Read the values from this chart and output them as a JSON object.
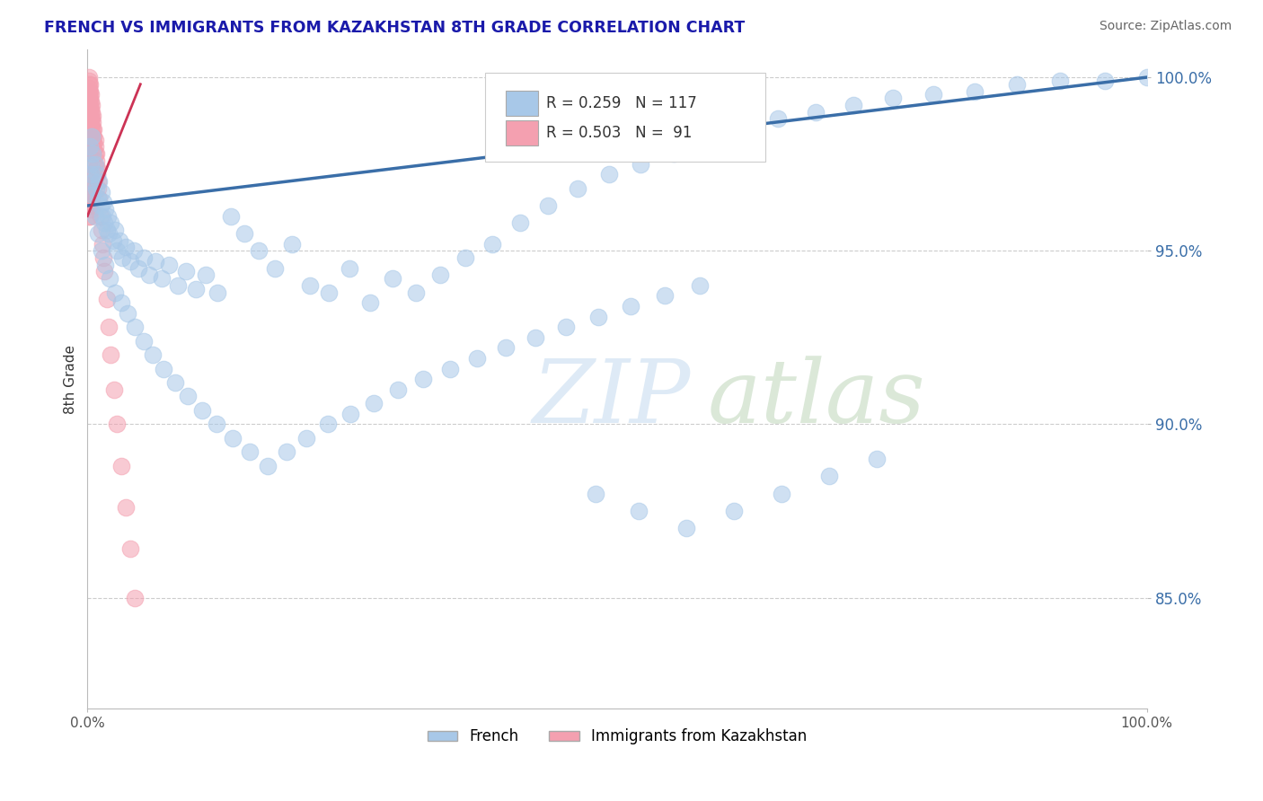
{
  "title": "FRENCH VS IMMIGRANTS FROM KAZAKHSTAN 8TH GRADE CORRELATION CHART",
  "source_text": "Source: ZipAtlas.com",
  "ylabel": "8th Grade",
  "watermark": "ZIPatlas",
  "xlim": [
    0.0,
    1.0
  ],
  "ylim": [
    0.818,
    1.008
  ],
  "yticks": [
    0.85,
    0.9,
    0.95,
    1.0
  ],
  "ytick_labels": [
    "85.0%",
    "90.0%",
    "95.0%",
    "100.0%"
  ],
  "xticks": [
    0.0,
    1.0
  ],
  "xtick_labels": [
    "0.0%",
    "100.0%"
  ],
  "legend_blue_label": "French",
  "legend_pink_label": "Immigrants from Kazakhstan",
  "R_blue": 0.259,
  "N_blue": 117,
  "R_pink": 0.503,
  "N_pink": 91,
  "blue_color": "#a8c8e8",
  "pink_color": "#f4a0b0",
  "blue_line_color": "#3a6ea8",
  "title_color": "#1a1aaa",
  "source_color": "#666666",
  "grid_color": "#cccccc",
  "background_color": "#ffffff",
  "blue_points_x": [
    0.002,
    0.003,
    0.004,
    0.005,
    0.006,
    0.007,
    0.008,
    0.009,
    0.01,
    0.011,
    0.012,
    0.013,
    0.014,
    0.015,
    0.016,
    0.017,
    0.018,
    0.019,
    0.02,
    0.022,
    0.024,
    0.026,
    0.028,
    0.03,
    0.033,
    0.036,
    0.04,
    0.044,
    0.048,
    0.053,
    0.058,
    0.064,
    0.07,
    0.077,
    0.085,
    0.093,
    0.102,
    0.112,
    0.123,
    0.135,
    0.148,
    0.162,
    0.177,
    0.193,
    0.21,
    0.228,
    0.247,
    0.267,
    0.288,
    0.31,
    0.333,
    0.357,
    0.382,
    0.408,
    0.435,
    0.463,
    0.492,
    0.522,
    0.553,
    0.585,
    0.618,
    0.652,
    0.687,
    0.723,
    0.76,
    0.798,
    0.837,
    0.877,
    0.918,
    0.96,
    1.0,
    0.003,
    0.005,
    0.007,
    0.01,
    0.013,
    0.017,
    0.021,
    0.026,
    0.032,
    0.038,
    0.045,
    0.053,
    0.062,
    0.072,
    0.083,
    0.095,
    0.108,
    0.122,
    0.137,
    0.153,
    0.17,
    0.188,
    0.207,
    0.227,
    0.248,
    0.27,
    0.293,
    0.317,
    0.342,
    0.368,
    0.395,
    0.423,
    0.452,
    0.482,
    0.513,
    0.545,
    0.578,
    0.48,
    0.52,
    0.565,
    0.61,
    0.655,
    0.7,
    0.745
  ],
  "blue_points_y": [
    0.98,
    0.975,
    0.983,
    0.978,
    0.97,
    0.975,
    0.968,
    0.972,
    0.965,
    0.97,
    0.963,
    0.967,
    0.96,
    0.964,
    0.958,
    0.962,
    0.956,
    0.96,
    0.955,
    0.958,
    0.953,
    0.956,
    0.95,
    0.953,
    0.948,
    0.951,
    0.947,
    0.95,
    0.945,
    0.948,
    0.943,
    0.947,
    0.942,
    0.946,
    0.94,
    0.944,
    0.939,
    0.943,
    0.938,
    0.96,
    0.955,
    0.95,
    0.945,
    0.952,
    0.94,
    0.938,
    0.945,
    0.935,
    0.942,
    0.938,
    0.943,
    0.948,
    0.952,
    0.958,
    0.963,
    0.968,
    0.972,
    0.975,
    0.978,
    0.982,
    0.985,
    0.988,
    0.99,
    0.992,
    0.994,
    0.995,
    0.996,
    0.998,
    0.999,
    0.999,
    1.0,
    0.972,
    0.966,
    0.96,
    0.955,
    0.95,
    0.946,
    0.942,
    0.938,
    0.935,
    0.932,
    0.928,
    0.924,
    0.92,
    0.916,
    0.912,
    0.908,
    0.904,
    0.9,
    0.896,
    0.892,
    0.888,
    0.892,
    0.896,
    0.9,
    0.903,
    0.906,
    0.91,
    0.913,
    0.916,
    0.919,
    0.922,
    0.925,
    0.928,
    0.931,
    0.934,
    0.937,
    0.94,
    0.88,
    0.875,
    0.87,
    0.875,
    0.88,
    0.885,
    0.89
  ],
  "pink_points_x": [
    0.001,
    0.001,
    0.001,
    0.001,
    0.001,
    0.001,
    0.001,
    0.001,
    0.001,
    0.001,
    0.001,
    0.001,
    0.001,
    0.001,
    0.001,
    0.001,
    0.001,
    0.001,
    0.001,
    0.001,
    0.002,
    0.002,
    0.002,
    0.002,
    0.002,
    0.002,
    0.002,
    0.002,
    0.002,
    0.002,
    0.003,
    0.003,
    0.003,
    0.003,
    0.003,
    0.003,
    0.003,
    0.003,
    0.004,
    0.004,
    0.004,
    0.004,
    0.004,
    0.004,
    0.005,
    0.005,
    0.005,
    0.005,
    0.005,
    0.006,
    0.006,
    0.006,
    0.006,
    0.007,
    0.007,
    0.007,
    0.008,
    0.008,
    0.008,
    0.009,
    0.009,
    0.01,
    0.01,
    0.011,
    0.012,
    0.013,
    0.014,
    0.015,
    0.016,
    0.018,
    0.02,
    0.022,
    0.025,
    0.028,
    0.032,
    0.036,
    0.04,
    0.045,
    0.001,
    0.001,
    0.001,
    0.001,
    0.001,
    0.001,
    0.002,
    0.002,
    0.002,
    0.002,
    0.002,
    0.003,
    0.003,
    0.003
  ],
  "pink_points_y": [
    1.0,
    0.999,
    0.998,
    0.997,
    0.996,
    0.995,
    0.994,
    0.993,
    0.992,
    0.991,
    0.99,
    0.989,
    0.988,
    0.987,
    0.986,
    0.985,
    0.984,
    0.983,
    0.982,
    0.981,
    0.998,
    0.996,
    0.994,
    0.992,
    0.99,
    0.988,
    0.986,
    0.984,
    0.982,
    0.98,
    0.995,
    0.993,
    0.991,
    0.989,
    0.987,
    0.985,
    0.983,
    0.981,
    0.992,
    0.99,
    0.988,
    0.986,
    0.984,
    0.982,
    0.989,
    0.987,
    0.985,
    0.983,
    0.981,
    0.985,
    0.983,
    0.981,
    0.979,
    0.982,
    0.98,
    0.978,
    0.978,
    0.976,
    0.974,
    0.974,
    0.972,
    0.97,
    0.968,
    0.965,
    0.96,
    0.956,
    0.952,
    0.948,
    0.944,
    0.936,
    0.928,
    0.92,
    0.91,
    0.9,
    0.888,
    0.876,
    0.864,
    0.85,
    0.975,
    0.972,
    0.969,
    0.966,
    0.963,
    0.96,
    0.972,
    0.969,
    0.966,
    0.963,
    0.96,
    0.968,
    0.965,
    0.962
  ],
  "blue_line_x0": 0.0,
  "blue_line_x1": 1.0,
  "blue_line_y0": 0.963,
  "blue_line_y1": 1.0,
  "pink_line_x0": 0.0,
  "pink_line_x1": 0.05,
  "pink_line_y0": 0.96,
  "pink_line_y1": 0.998
}
